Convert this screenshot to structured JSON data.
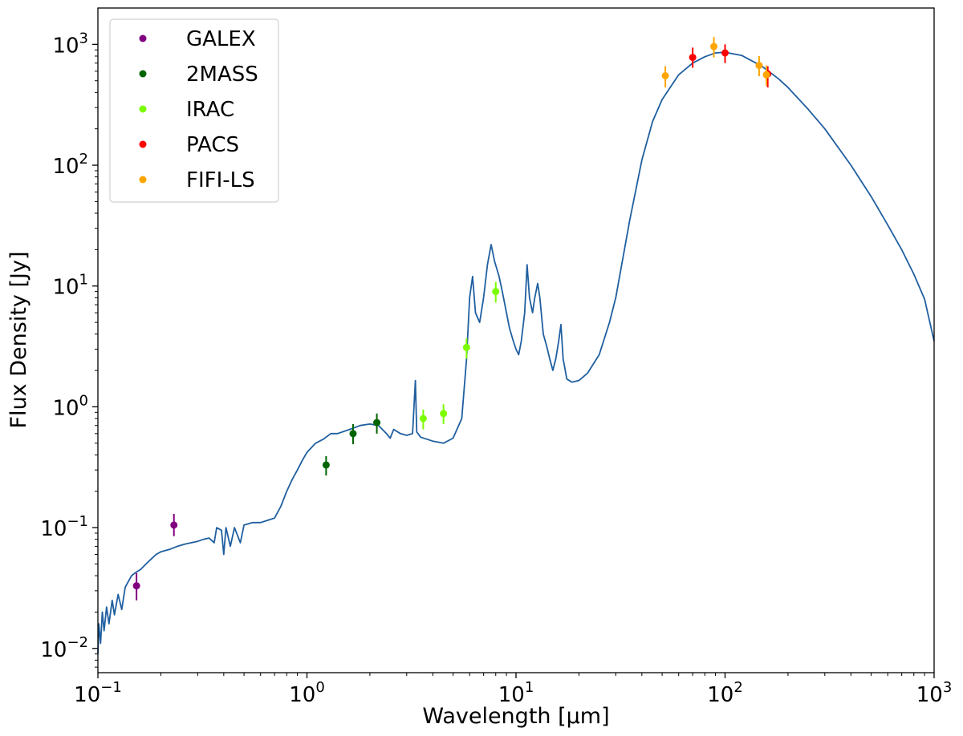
{
  "chart_data": {
    "type": "scatter",
    "xlabel": "Wavelength [μm]",
    "ylabel": "Flux Density [Jy]",
    "xscale": "log",
    "yscale": "log",
    "xlim": [
      0.1,
      1000
    ],
    "ylim": [
      0.0063,
      2000
    ],
    "grid": false,
    "legend_position": "upper-left",
    "x_ticks": [
      {
        "value": 0.1,
        "base": "10",
        "exp": "−1"
      },
      {
        "value": 1,
        "base": "10",
        "exp": "0"
      },
      {
        "value": 10,
        "base": "10",
        "exp": "1"
      },
      {
        "value": 100,
        "base": "10",
        "exp": "2"
      },
      {
        "value": 1000,
        "base": "10",
        "exp": "3"
      }
    ],
    "y_ticks": [
      {
        "value": 0.01,
        "base": "10",
        "exp": "−2"
      },
      {
        "value": 0.1,
        "base": "10",
        "exp": "−1"
      },
      {
        "value": 1,
        "base": "10",
        "exp": "0"
      },
      {
        "value": 10,
        "base": "10",
        "exp": "1"
      },
      {
        "value": 100,
        "base": "10",
        "exp": "2"
      },
      {
        "value": 1000,
        "base": "10",
        "exp": "3"
      }
    ],
    "model_curve": {
      "color": "#1f5fa0",
      "points": [
        [
          0.1,
          0.009
        ],
        [
          0.101,
          0.016
        ],
        [
          0.103,
          0.011
        ],
        [
          0.105,
          0.02
        ],
        [
          0.107,
          0.014
        ],
        [
          0.11,
          0.022
        ],
        [
          0.113,
          0.016
        ],
        [
          0.117,
          0.025
        ],
        [
          0.12,
          0.019
        ],
        [
          0.125,
          0.028
        ],
        [
          0.13,
          0.021
        ],
        [
          0.135,
          0.032
        ],
        [
          0.14,
          0.036
        ],
        [
          0.145,
          0.04
        ],
        [
          0.15,
          0.042
        ],
        [
          0.16,
          0.045
        ],
        [
          0.17,
          0.05
        ],
        [
          0.18,
          0.055
        ],
        [
          0.19,
          0.06
        ],
        [
          0.2,
          0.063
        ],
        [
          0.22,
          0.066
        ],
        [
          0.24,
          0.07
        ],
        [
          0.26,
          0.073
        ],
        [
          0.28,
          0.075
        ],
        [
          0.3,
          0.077
        ],
        [
          0.32,
          0.08
        ],
        [
          0.34,
          0.082
        ],
        [
          0.36,
          0.075
        ],
        [
          0.37,
          0.1
        ],
        [
          0.39,
          0.095
        ],
        [
          0.4,
          0.06
        ],
        [
          0.41,
          0.1
        ],
        [
          0.43,
          0.07
        ],
        [
          0.45,
          0.1
        ],
        [
          0.48,
          0.075
        ],
        [
          0.5,
          0.105
        ],
        [
          0.55,
          0.11
        ],
        [
          0.6,
          0.11
        ],
        [
          0.65,
          0.115
        ],
        [
          0.7,
          0.12
        ],
        [
          0.75,
          0.15
        ],
        [
          0.8,
          0.2
        ],
        [
          0.85,
          0.25
        ],
        [
          0.9,
          0.3
        ],
        [
          0.95,
          0.36
        ],
        [
          1.0,
          0.42
        ],
        [
          1.1,
          0.5
        ],
        [
          1.2,
          0.54
        ],
        [
          1.3,
          0.6
        ],
        [
          1.4,
          0.6
        ],
        [
          1.6,
          0.65
        ],
        [
          1.8,
          0.7
        ],
        [
          2.0,
          0.72
        ],
        [
          2.2,
          0.7
        ],
        [
          2.4,
          0.6
        ],
        [
          2.5,
          0.55
        ],
        [
          2.6,
          0.65
        ],
        [
          2.8,
          0.6
        ],
        [
          3.0,
          0.58
        ],
        [
          3.2,
          0.6
        ],
        [
          3.3,
          1.65
        ],
        [
          3.35,
          0.62
        ],
        [
          3.5,
          0.56
        ],
        [
          4.0,
          0.52
        ],
        [
          4.5,
          0.5
        ],
        [
          5.0,
          0.55
        ],
        [
          5.5,
          0.8
        ],
        [
          5.8,
          2.5
        ],
        [
          6.0,
          8.0
        ],
        [
          6.2,
          12.0
        ],
        [
          6.4,
          6.0
        ],
        [
          6.7,
          5.0
        ],
        [
          7.0,
          8.0
        ],
        [
          7.3,
          15.0
        ],
        [
          7.6,
          22.0
        ],
        [
          7.9,
          16.0
        ],
        [
          8.3,
          12.0
        ],
        [
          8.6,
          9.0
        ],
        [
          9.0,
          6.0
        ],
        [
          9.3,
          4.5
        ],
        [
          9.7,
          3.5
        ],
        [
          10.0,
          3.0
        ],
        [
          10.3,
          2.7
        ],
        [
          10.6,
          3.5
        ],
        [
          11.0,
          6.0
        ],
        [
          11.3,
          15.0
        ],
        [
          11.6,
          8.0
        ],
        [
          12.0,
          6.0
        ],
        [
          12.3,
          8.0
        ],
        [
          12.7,
          10.5
        ],
        [
          13.0,
          8.0
        ],
        [
          13.5,
          4.0
        ],
        [
          14.0,
          3.2
        ],
        [
          14.5,
          2.5
        ],
        [
          15.0,
          2.0
        ],
        [
          15.5,
          2.5
        ],
        [
          16.0,
          3.5
        ],
        [
          16.4,
          4.8
        ],
        [
          16.8,
          2.5
        ],
        [
          17.5,
          1.7
        ],
        [
          18.5,
          1.6
        ],
        [
          20,
          1.65
        ],
        [
          22,
          1.9
        ],
        [
          25,
          2.7
        ],
        [
          28,
          5.0
        ],
        [
          30,
          8.0
        ],
        [
          35,
          35.0
        ],
        [
          40,
          110.0
        ],
        [
          45,
          230.0
        ],
        [
          50,
          350.0
        ],
        [
          60,
          560.0
        ],
        [
          70,
          700.0
        ],
        [
          80,
          790.0
        ],
        [
          90,
          850.0
        ],
        [
          100,
          860.0
        ],
        [
          120,
          810.0
        ],
        [
          150,
          660.0
        ],
        [
          180,
          520.0
        ],
        [
          200,
          440.0
        ],
        [
          250,
          290.0
        ],
        [
          300,
          200.0
        ],
        [
          400,
          100.0
        ],
        [
          500,
          55.0
        ],
        [
          600,
          32.0
        ],
        [
          700,
          20.0
        ],
        [
          800,
          12.5
        ],
        [
          900,
          7.8
        ],
        [
          1000,
          3.5
        ]
      ]
    },
    "series": [
      {
        "name": "GALEX",
        "color": "#800080",
        "points": [
          {
            "x": 0.153,
            "y": 0.033,
            "yerr_lo": 0.025,
            "yerr_hi": 0.042
          },
          {
            "x": 0.231,
            "y": 0.105,
            "yerr_lo": 0.085,
            "yerr_hi": 0.13
          }
        ]
      },
      {
        "name": "2MASS",
        "color": "#006400",
        "points": [
          {
            "x": 1.235,
            "y": 0.33,
            "yerr_lo": 0.27,
            "yerr_hi": 0.39
          },
          {
            "x": 1.662,
            "y": 0.6,
            "yerr_lo": 0.49,
            "yerr_hi": 0.72
          },
          {
            "x": 2.159,
            "y": 0.74,
            "yerr_lo": 0.6,
            "yerr_hi": 0.88
          }
        ]
      },
      {
        "name": "IRAC",
        "color": "#7cfc00",
        "points": [
          {
            "x": 3.6,
            "y": 0.8,
            "yerr_lo": 0.65,
            "yerr_hi": 0.95
          },
          {
            "x": 4.5,
            "y": 0.88,
            "yerr_lo": 0.72,
            "yerr_hi": 1.05
          },
          {
            "x": 5.8,
            "y": 3.1,
            "yerr_lo": 2.5,
            "yerr_hi": 3.7
          },
          {
            "x": 8.0,
            "y": 9.0,
            "yerr_lo": 7.3,
            "yerr_hi": 10.8
          }
        ]
      },
      {
        "name": "PACS",
        "color": "#ff0000",
        "points": [
          {
            "x": 70,
            "y": 780,
            "yerr_lo": 640,
            "yerr_hi": 940
          },
          {
            "x": 100,
            "y": 850,
            "yerr_lo": 700,
            "yerr_hi": 1000
          },
          {
            "x": 160,
            "y": 570,
            "yerr_lo": 440,
            "yerr_hi": 660
          }
        ]
      },
      {
        "name": "FIFI-LS",
        "color": "#ffa500",
        "points": [
          {
            "x": 51.8,
            "y": 550,
            "yerr_lo": 440,
            "yerr_hi": 660
          },
          {
            "x": 88.4,
            "y": 960,
            "yerr_lo": 780,
            "yerr_hi": 1150
          },
          {
            "x": 145.5,
            "y": 670,
            "yerr_lo": 545,
            "yerr_hi": 800
          },
          {
            "x": 157.7,
            "y": 560,
            "yerr_lo": 455,
            "yerr_hi": 670
          }
        ]
      }
    ]
  }
}
